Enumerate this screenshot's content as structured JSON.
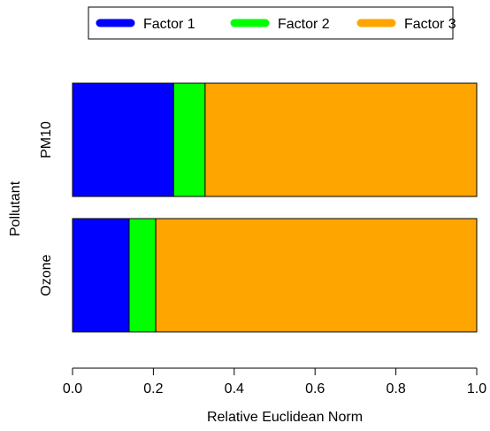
{
  "chart_data": {
    "type": "bar",
    "orientation": "horizontal",
    "stacked": true,
    "categories": [
      "PM10",
      "Ozone"
    ],
    "series": [
      {
        "name": "Factor 1",
        "values": [
          0.25,
          0.14
        ]
      },
      {
        "name": "Factor 2",
        "values": [
          0.078,
          0.066
        ]
      },
      {
        "name": "Factor 3",
        "values": [
          0.672,
          0.794
        ]
      }
    ],
    "xlabel": "Relative Euclidean Norm",
    "ylabel": "Pollutant",
    "xlim": [
      0,
      1
    ],
    "xticks": [
      "0.0",
      "0.2",
      "0.4",
      "0.6",
      "0.8",
      "1.0"
    ],
    "grid": false,
    "legend_position": "top"
  },
  "colors": {
    "Factor 1": "#0000ff",
    "Factor 2": "#00ff00",
    "Factor 3": "#ffa500"
  }
}
